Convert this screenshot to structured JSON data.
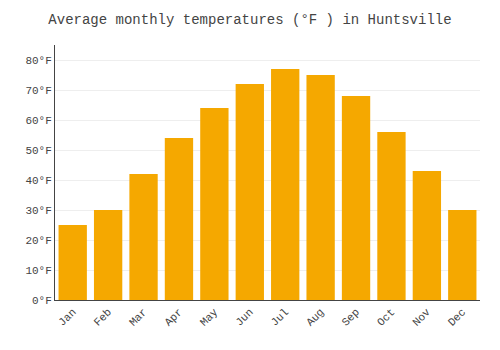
{
  "chart_data": {
    "type": "bar",
    "title": "Average monthly temperatures (°F ) in Huntsville",
    "categories": [
      "Jan",
      "Feb",
      "Mar",
      "Apr",
      "May",
      "Jun",
      "Jul",
      "Aug",
      "Sep",
      "Oct",
      "Nov",
      "Dec"
    ],
    "values": [
      25,
      30,
      42,
      54,
      64,
      72,
      77,
      75,
      68,
      56,
      43,
      30
    ],
    "color": "#F5A800",
    "ylim": [
      0,
      85
    ],
    "yticks": [
      {
        "value": 0,
        "label": "0°F"
      },
      {
        "value": 10,
        "label": "10°F"
      },
      {
        "value": 20,
        "label": "20°F"
      },
      {
        "value": 30,
        "label": "30°F"
      },
      {
        "value": 40,
        "label": "40°F"
      },
      {
        "value": 50,
        "label": "50°F"
      },
      {
        "value": 60,
        "label": "60°F"
      },
      {
        "value": 70,
        "label": "70°F"
      },
      {
        "value": 80,
        "label": "80°F"
      }
    ],
    "grid": true
  }
}
